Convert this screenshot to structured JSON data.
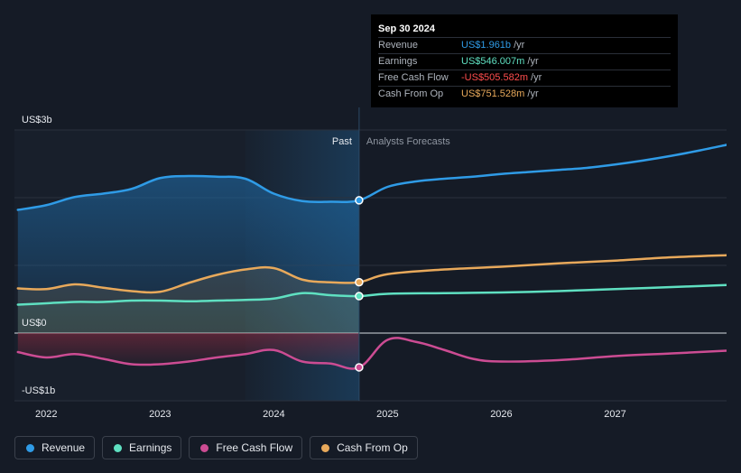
{
  "chart_data": {
    "type": "line",
    "y_unit_labels": [
      "US$3b",
      "US$0",
      "-US$1b"
    ],
    "ylim": [
      -1,
      3
    ],
    "x_tick_labels": [
      "2022",
      "2023",
      "2024",
      "2025",
      "2026",
      "2027"
    ],
    "xlim": [
      2021.72,
      2027.98
    ],
    "period_labels": {
      "past": "Past",
      "forecast": "Analysts Forecasts"
    },
    "past_end": 2024.75,
    "highlight_start": 2023.75,
    "grid": true,
    "legend_position": "bottom-left",
    "series": [
      {
        "name": "Revenue",
        "color": "#2f9be6",
        "x": [
          2021.75,
          2022.0,
          2022.25,
          2022.5,
          2022.75,
          2023.0,
          2023.25,
          2023.5,
          2023.75,
          2024.0,
          2024.25,
          2024.5,
          2024.75,
          2025.0,
          2025.25,
          2025.5,
          2025.75,
          2026.0,
          2026.25,
          2026.5,
          2026.75,
          2027.0,
          2027.25,
          2027.5,
          2027.75,
          2027.98
        ],
        "y": [
          1.82,
          1.89,
          2.01,
          2.06,
          2.13,
          2.29,
          2.32,
          2.31,
          2.28,
          2.06,
          1.95,
          1.94,
          1.961,
          2.16,
          2.24,
          2.28,
          2.31,
          2.35,
          2.38,
          2.41,
          2.44,
          2.49,
          2.55,
          2.62,
          2.7,
          2.78
        ]
      },
      {
        "name": "Earnings",
        "color": "#5fe0c1",
        "x": [
          2021.75,
          2022.0,
          2022.25,
          2022.5,
          2022.75,
          2023.0,
          2023.25,
          2023.5,
          2023.75,
          2024.0,
          2024.25,
          2024.5,
          2024.75,
          2025.0,
          2025.5,
          2026.0,
          2026.5,
          2027.0,
          2027.5,
          2027.98
        ],
        "y": [
          0.42,
          0.44,
          0.46,
          0.46,
          0.48,
          0.48,
          0.47,
          0.48,
          0.49,
          0.51,
          0.59,
          0.56,
          0.546,
          0.58,
          0.59,
          0.6,
          0.62,
          0.65,
          0.68,
          0.71
        ]
      },
      {
        "name": "Free Cash Flow",
        "color": "#cc4c93",
        "x": [
          2021.75,
          2022.0,
          2022.25,
          2022.5,
          2022.75,
          2023.0,
          2023.25,
          2023.5,
          2023.75,
          2024.0,
          2024.25,
          2024.5,
          2024.75,
          2025.0,
          2025.25,
          2025.5,
          2025.75,
          2026.0,
          2026.5,
          2027.0,
          2027.5,
          2027.98
        ],
        "y": [
          -0.28,
          -0.36,
          -0.31,
          -0.38,
          -0.46,
          -0.46,
          -0.42,
          -0.36,
          -0.31,
          -0.25,
          -0.42,
          -0.45,
          -0.506,
          -0.1,
          -0.13,
          -0.25,
          -0.38,
          -0.42,
          -0.4,
          -0.34,
          -0.3,
          -0.26
        ]
      },
      {
        "name": "Cash From Op",
        "color": "#e8a95b",
        "x": [
          2021.75,
          2022.0,
          2022.25,
          2022.5,
          2022.75,
          2023.0,
          2023.25,
          2023.5,
          2023.75,
          2024.0,
          2024.25,
          2024.5,
          2024.75,
          2025.0,
          2025.5,
          2026.0,
          2026.5,
          2027.0,
          2027.5,
          2027.98
        ],
        "y": [
          0.66,
          0.65,
          0.72,
          0.67,
          0.62,
          0.61,
          0.74,
          0.86,
          0.94,
          0.96,
          0.79,
          0.75,
          0.752,
          0.87,
          0.94,
          0.98,
          1.03,
          1.07,
          1.12,
          1.15
        ]
      }
    ]
  },
  "tooltip": {
    "date": "Sep 30 2024",
    "rows": [
      {
        "name": "Revenue",
        "value": "US$1.961b",
        "unit": " /yr",
        "color": "#2f9be6"
      },
      {
        "name": "Earnings",
        "value": "US$546.007m",
        "unit": " /yr",
        "color": "#5fe0c1"
      },
      {
        "name": "Free Cash Flow",
        "value": "-US$505.582m",
        "unit": " /yr",
        "color": "#ff4d4d"
      },
      {
        "name": "Cash From Op",
        "value": "US$751.528m",
        "unit": " /yr",
        "color": "#e8a95b"
      }
    ]
  },
  "legend": [
    {
      "label": "Revenue",
      "color": "#2f9be6"
    },
    {
      "label": "Earnings",
      "color": "#5fe0c1"
    },
    {
      "label": "Free Cash Flow",
      "color": "#cc4c93"
    },
    {
      "label": "Cash From Op",
      "color": "#e8a95b"
    }
  ]
}
